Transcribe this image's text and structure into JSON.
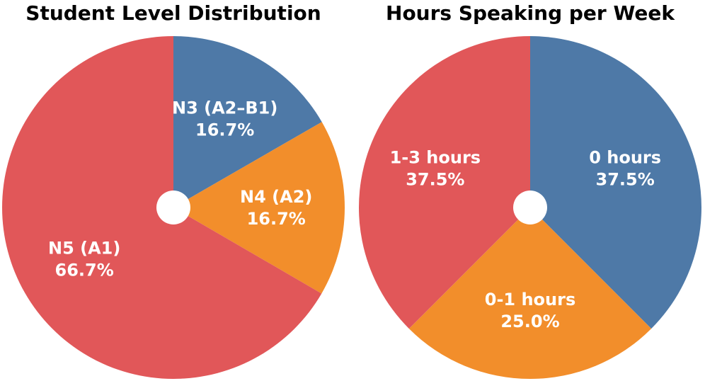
{
  "chart_data": [
    {
      "type": "pie",
      "title": "Student Level Distribution",
      "categories": [
        "N3 (A2–B1)",
        "N4 (A2)",
        "N5 (A1)"
      ],
      "values": [
        16.7,
        16.7,
        66.7
      ],
      "value_labels": [
        "16.7%",
        "16.7%",
        "66.7%"
      ],
      "colors": [
        "#4e79a7",
        "#f28e2b",
        "#e15759"
      ]
    },
    {
      "type": "pie",
      "title": "Hours Speaking per Week",
      "categories": [
        "0 hours",
        "0-1 hours",
        "1-3 hours"
      ],
      "values": [
        37.5,
        25.0,
        37.5
      ],
      "value_labels": [
        "37.5%",
        "25.0%",
        "37.5%"
      ],
      "colors": [
        "#4e79a7",
        "#f28e2b",
        "#e15759"
      ]
    }
  ]
}
